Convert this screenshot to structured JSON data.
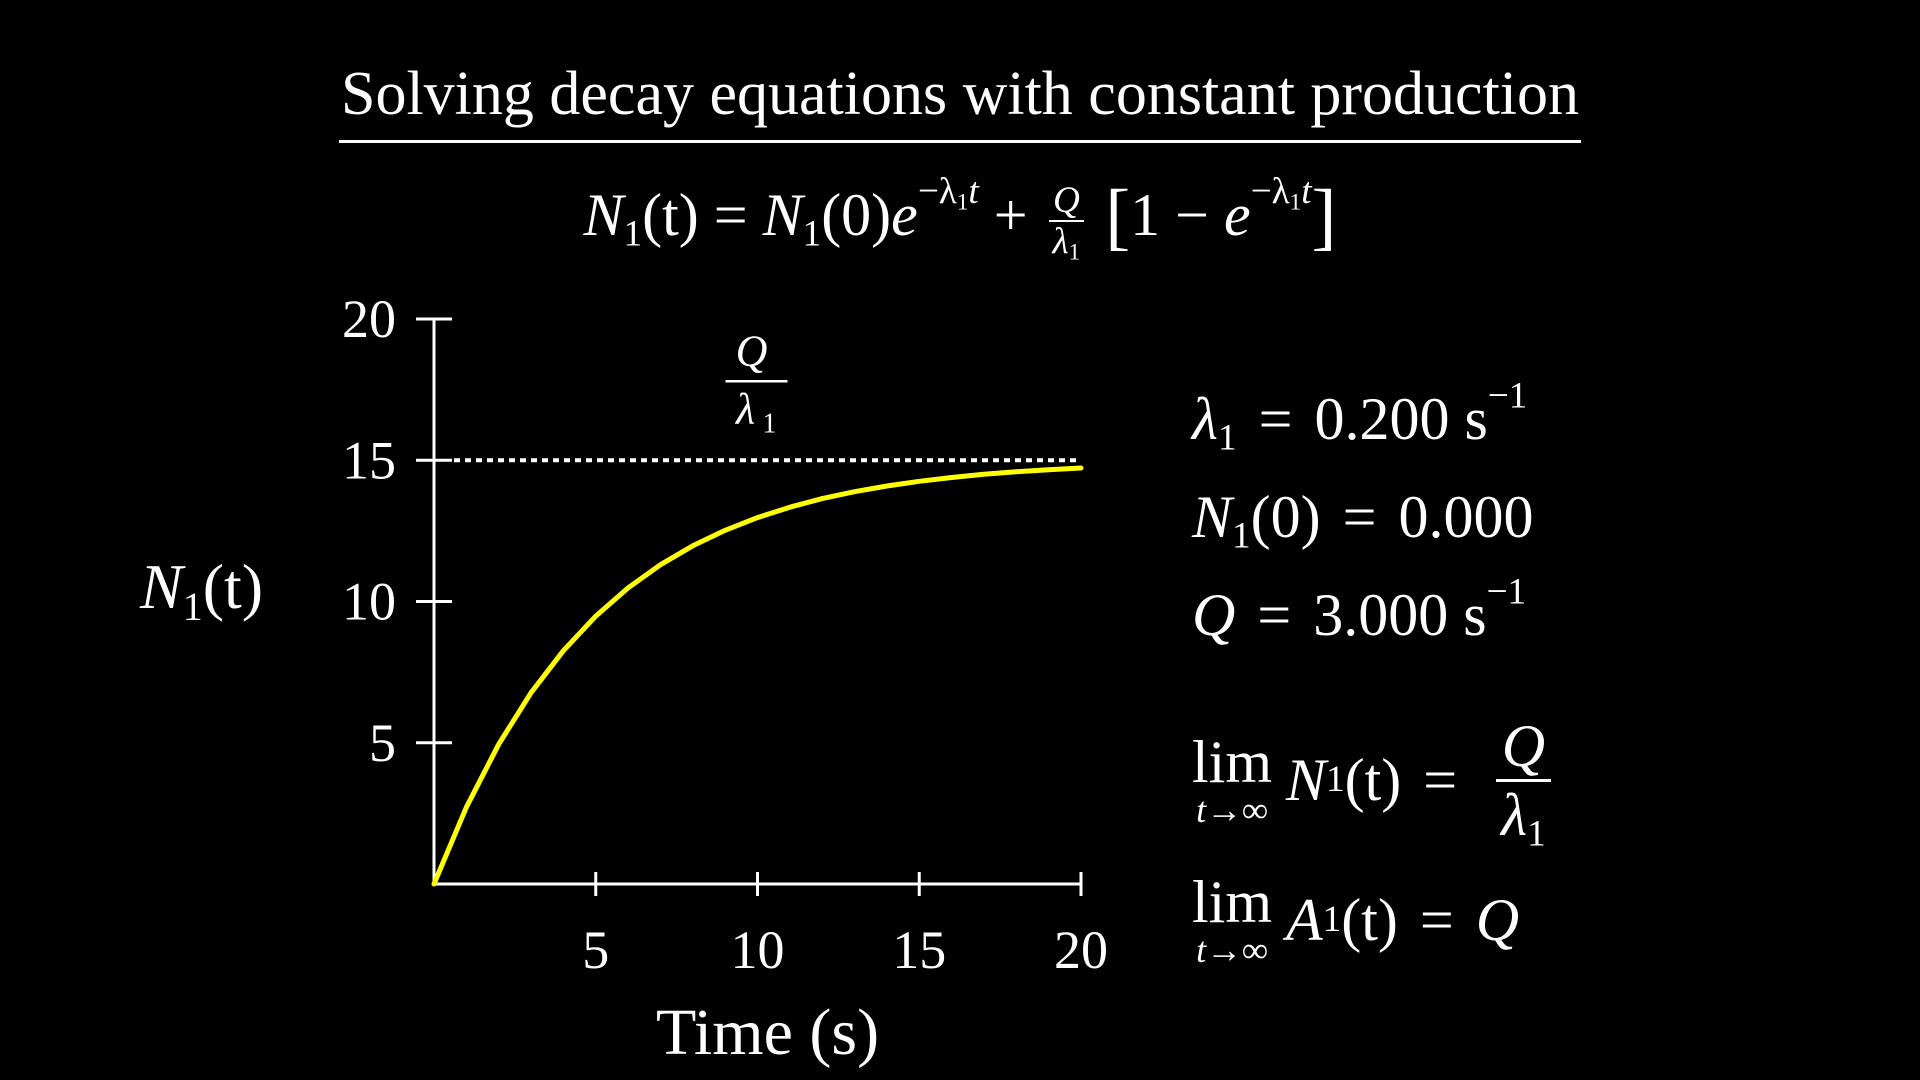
{
  "title": "Solving decay equations with constant production",
  "equation": {
    "lhs": "N",
    "lhs_sub": "1",
    "lhs_arg": "(t)",
    "eq": "=",
    "term1": "N",
    "term1_sub": "1",
    "term1_arg": "(0)",
    "exp_base": "e",
    "exp": "−λ",
    "exp_sub": "1",
    "exp_t": "t",
    "plus": "+",
    "frac_num": "Q",
    "frac_den": "λ",
    "frac_den_sub": "1",
    "bracket_open": "[",
    "bracket_inner": "1 − ",
    "bracket_close": "]"
  },
  "chart_data": {
    "type": "line",
    "xlabel": "Time (s)",
    "ylabel": "N",
    "ylabel_sub": "1",
    "ylabel_arg": "(t)",
    "xlim": [
      0,
      20
    ],
    "ylim": [
      0,
      20
    ],
    "x_ticks": [
      5,
      10,
      15,
      20
    ],
    "y_ticks": [
      5,
      10,
      15,
      20
    ],
    "asymptote": {
      "value": 15,
      "label_num": "Q",
      "label_den": "λ",
      "label_den_sub": "1",
      "color": "#ffffff",
      "style": "dotted"
    },
    "series": [
      {
        "color": "#ffff00",
        "formula": "N1(t) = N1(0)e^(−λ1 t) + (Q/λ1)[1 − e^(−λ1 t)]",
        "x": [
          0,
          1,
          2,
          3,
          4,
          5,
          6,
          7,
          8,
          9,
          10,
          11,
          12,
          13,
          14,
          15,
          16,
          17,
          18,
          19,
          20
        ],
        "y": [
          0,
          2.719,
          4.945,
          6.767,
          8.26,
          9.482,
          10.482,
          11.302,
          11.971,
          12.52,
          12.97,
          13.338,
          13.641,
          13.888,
          14.09,
          14.255,
          14.39,
          14.501,
          14.591,
          14.665,
          14.725
        ]
      }
    ]
  },
  "params": {
    "lambda": {
      "sym": "λ",
      "sub": "1",
      "eq": "=",
      "value": "0.200",
      "unit": "s",
      "unit_exp": "−1"
    },
    "n0": {
      "sym": "N",
      "sub": "1",
      "arg": "(0)",
      "eq": "=",
      "value": "0.000"
    },
    "q": {
      "sym": "Q",
      "eq": "=",
      "value": "3.000",
      "unit": "s",
      "unit_exp": "−1"
    }
  },
  "limits": {
    "lim_word": "lim",
    "lim_under": "t→∞",
    "row1": {
      "sym": "N",
      "sub": "1",
      "arg": "(t)",
      "eq": "=",
      "num": "Q",
      "den": "λ",
      "den_sub": "1"
    },
    "row2": {
      "sym": "A",
      "sub": "1",
      "arg": "(t)",
      "eq": "=",
      "rhs": "Q"
    }
  },
  "colors": {
    "background": "#000000",
    "text": "#ffffff",
    "curve": "#ffff00"
  }
}
